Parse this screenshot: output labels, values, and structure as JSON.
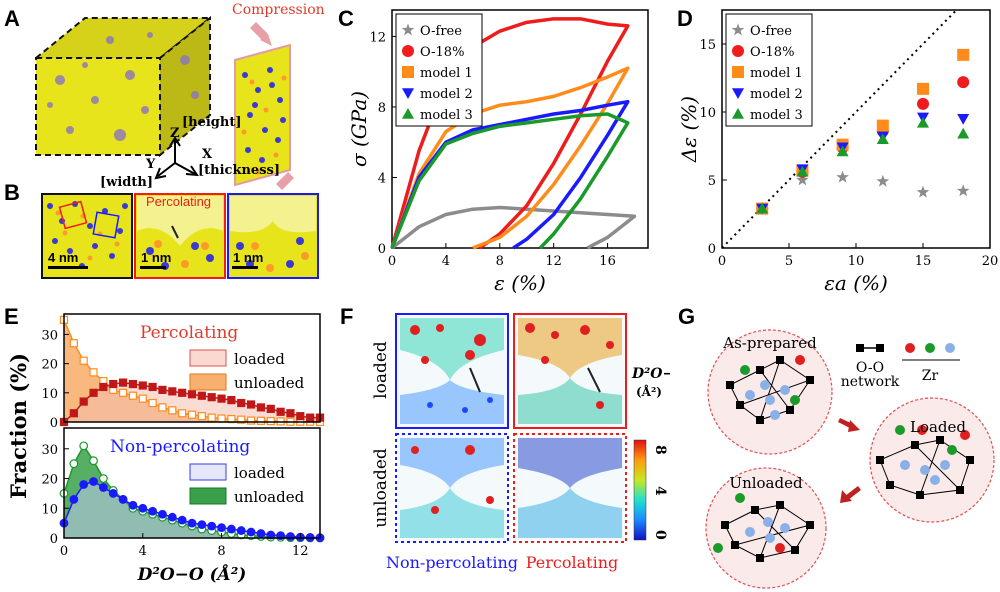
{
  "panel_labels": {
    "A": "A",
    "B": "B",
    "C": "C",
    "D": "D",
    "E": "E",
    "F": "F",
    "G": "G"
  },
  "panelA": {
    "compression": "Compression",
    "axis_z": "Z",
    "axis_y": "Y",
    "axis_x": "X",
    "height": "[height]",
    "width": "[width]",
    "thickness": "[thickness]"
  },
  "panelB": {
    "scale1": "4 nm",
    "scale2": "1 nm",
    "scale3": "1 nm",
    "percolating": "Percolating"
  },
  "colors": {
    "gray": "#8c8c8c",
    "red": "#ee1c1c",
    "orange": "#ff8c1a",
    "blue": "#1a1aff",
    "green": "#1a9a2a",
    "yellow": "#e8e41c",
    "purple": "#7a5cc8",
    "dkred": "#c01818",
    "dkgreen": "#2a8a3a"
  },
  "chart_data": [
    {
      "id": "C",
      "type": "line",
      "xlabel": "ε (%)",
      "ylabel": "σ (GPa)",
      "xlim": [
        0,
        19
      ],
      "ylim": [
        0,
        13.5
      ],
      "xticks": [
        "0",
        "4",
        "8",
        "12",
        "16"
      ],
      "yticks": [
        "0",
        "4",
        "8",
        "12"
      ],
      "legend": [
        "O-free",
        "O-18%",
        "model 1",
        "model 2",
        "model 3"
      ],
      "legend_position": "top-left",
      "series": [
        {
          "name": "O-free",
          "color": "gray",
          "loading": [
            [
              0,
              0
            ],
            [
              2,
              1.2
            ],
            [
              4,
              1.9
            ],
            [
              6,
              2.2
            ],
            [
              8,
              2.3
            ],
            [
              10,
              2.2
            ],
            [
              12,
              2.1
            ],
            [
              14,
              2.0
            ],
            [
              16,
              1.9
            ],
            [
              18,
              1.8
            ]
          ],
          "unloading": [
            [
              18,
              1.8
            ],
            [
              17,
              1.2
            ],
            [
              16,
              0.6
            ],
            [
              15,
              0.2
            ],
            [
              14.5,
              0
            ]
          ]
        },
        {
          "name": "O-18%",
          "color": "red",
          "loading": [
            [
              0,
              0
            ],
            [
              2,
              5.5
            ],
            [
              4,
              9.5
            ],
            [
              6,
              11.4
            ],
            [
              8,
              12.3
            ],
            [
              10,
              12.8
            ],
            [
              12,
              13.0
            ],
            [
              14,
              13.0
            ],
            [
              16,
              12.7
            ],
            [
              17.5,
              12.6
            ]
          ],
          "unloading": [
            [
              17.5,
              12.6
            ],
            [
              16,
              10.6
            ],
            [
              14,
              7.6
            ],
            [
              12,
              4.8
            ],
            [
              10,
              2.4
            ],
            [
              8,
              0.8
            ],
            [
              6.5,
              0
            ]
          ]
        },
        {
          "name": "model 1",
          "color": "orange",
          "loading": [
            [
              0,
              0
            ],
            [
              2,
              4.2
            ],
            [
              4,
              6.6
            ],
            [
              6,
              7.6
            ],
            [
              8,
              8.1
            ],
            [
              10,
              8.3
            ],
            [
              12,
              8.6
            ],
            [
              14,
              9.1
            ],
            [
              16,
              9.7
            ],
            [
              17.5,
              10.2
            ]
          ],
          "unloading": [
            [
              17.5,
              10.2
            ],
            [
              16,
              8.2
            ],
            [
              14,
              5.8
            ],
            [
              12,
              3.6
            ],
            [
              10,
              1.8
            ],
            [
              8,
              0.6
            ],
            [
              6,
              0
            ]
          ]
        },
        {
          "name": "model 2",
          "color": "blue",
          "loading": [
            [
              0,
              0
            ],
            [
              2,
              4.0
            ],
            [
              4,
              6.0
            ],
            [
              6,
              6.7
            ],
            [
              8,
              7.0
            ],
            [
              10,
              7.3
            ],
            [
              12,
              7.6
            ],
            [
              14,
              7.8
            ],
            [
              16,
              8.1
            ],
            [
              17.5,
              8.3
            ]
          ],
          "unloading": [
            [
              17.5,
              8.3
            ],
            [
              16,
              6.4
            ],
            [
              14,
              4.0
            ],
            [
              12,
              1.9
            ],
            [
              10,
              0.5
            ],
            [
              9,
              0
            ]
          ]
        },
        {
          "name": "model 3",
          "color": "green",
          "loading": [
            [
              0,
              0
            ],
            [
              2,
              3.8
            ],
            [
              4,
              5.9
            ],
            [
              6,
              6.5
            ],
            [
              8,
              6.9
            ],
            [
              10,
              7.1
            ],
            [
              12,
              7.3
            ],
            [
              14,
              7.5
            ],
            [
              16,
              7.6
            ],
            [
              17.5,
              7.1
            ]
          ],
          "unloading": [
            [
              17.5,
              7.1
            ],
            [
              16,
              5.2
            ],
            [
              14,
              2.8
            ],
            [
              12,
              0.8
            ],
            [
              11,
              0
            ]
          ]
        }
      ]
    },
    {
      "id": "D",
      "type": "scatter",
      "xlabel": "εa (%)",
      "ylabel": "Δε (%)",
      "xlim": [
        0,
        20
      ],
      "ylim": [
        0,
        17.5
      ],
      "xticks": [
        "0",
        "5",
        "10",
        "15",
        "20"
      ],
      "yticks": [
        "0",
        "5",
        "10",
        "15"
      ],
      "legend": [
        "O-free",
        "O-18%",
        "model 1",
        "model 2",
        "model 3"
      ],
      "legend_position": "top-left",
      "x": [
        3,
        6,
        9,
        12,
        15,
        18
      ],
      "series": [
        {
          "name": "O-free",
          "marker": "star",
          "color": "gray",
          "values": [
            2.8,
            5.0,
            5.2,
            4.9,
            4.1,
            4.2
          ]
        },
        {
          "name": "O-18%",
          "marker": "circle",
          "color": "red",
          "values": [
            2.9,
            5.6,
            7.4,
            8.6,
            10.6,
            12.2
          ]
        },
        {
          "name": "model 1",
          "marker": "square",
          "color": "orange",
          "values": [
            2.9,
            5.7,
            7.6,
            9.0,
            11.7,
            14.2
          ]
        },
        {
          "name": "model 2",
          "marker": "triangle-down",
          "color": "blue",
          "values": [
            2.9,
            5.8,
            7.4,
            8.2,
            9.6,
            9.5
          ]
        },
        {
          "name": "model 3",
          "marker": "triangle-up",
          "color": "green",
          "values": [
            2.9,
            5.6,
            7.1,
            8.0,
            9.2,
            8.4
          ]
        }
      ],
      "reference_line": "y = x (dotted)"
    },
    {
      "id": "E-top",
      "type": "area",
      "title": "Percolating",
      "ylabel": "Fraction (%)",
      "xlim": [
        0,
        13
      ],
      "ylim": [
        0,
        37
      ],
      "yticks": [
        "0",
        "10",
        "20",
        "30"
      ],
      "legend": [
        "loaded",
        "unloaded"
      ],
      "x": [
        0,
        0.5,
        1,
        1.5,
        2,
        2.5,
        3,
        3.5,
        4,
        4.5,
        5,
        5.5,
        6,
        6.5,
        7,
        7.5,
        8,
        8.5,
        9,
        9.5,
        10,
        10.5,
        11,
        11.5,
        12,
        12.5,
        13
      ],
      "series": [
        {
          "name": "loaded",
          "color": "dkred",
          "values": [
            0,
            3,
            7,
            10,
            12,
            13,
            13.5,
            13,
            12.5,
            12,
            11,
            10.5,
            10,
            9.5,
            9,
            8.5,
            8,
            7.5,
            6.5,
            6,
            5,
            4.5,
            3.5,
            3,
            2,
            1.5,
            1.5
          ]
        },
        {
          "name": "unloaded",
          "color": "orange",
          "values": [
            35,
            27,
            21,
            17,
            14,
            11,
            10,
            9,
            8,
            6.5,
            5,
            4,
            3,
            2.5,
            2,
            1.5,
            1.2,
            1,
            0.8,
            0.5,
            0.4,
            0.3,
            0.2,
            0.1,
            0.1,
            0.1,
            0
          ]
        }
      ]
    },
    {
      "id": "E-bottom",
      "type": "area",
      "title": "Non-percolating",
      "xlabel": "D²O−O (Å²)",
      "ylabel": "Fraction (%)",
      "xlim": [
        0,
        13
      ],
      "ylim": [
        0,
        37
      ],
      "xticks": [
        "0",
        "4",
        "8",
        "12"
      ],
      "yticks": [
        "0",
        "10",
        "20",
        "30"
      ],
      "legend": [
        "loaded",
        "unloaded"
      ],
      "x": [
        0,
        0.5,
        1,
        1.5,
        2,
        2.5,
        3,
        3.5,
        4,
        4.5,
        5,
        5.5,
        6,
        6.5,
        7,
        7.5,
        8,
        8.5,
        9,
        9.5,
        10,
        10.5,
        11,
        11.5,
        12,
        12.5,
        13
      ],
      "series": [
        {
          "name": "loaded",
          "color": "blue",
          "values": [
            5,
            13,
            18,
            19,
            17,
            15,
            13,
            11,
            10,
            9,
            8,
            7,
            6,
            5,
            4.5,
            4,
            3.5,
            3,
            2.5,
            2,
            1.5,
            1,
            0.8,
            0.5,
            0.3,
            0.2,
            0.1
          ]
        },
        {
          "name": "unloaded",
          "color": "green",
          "values": [
            15,
            25,
            31,
            26,
            20,
            16,
            13,
            10,
            9,
            8,
            7,
            6,
            5,
            4,
            3,
            2.5,
            2,
            1.5,
            1,
            0.8,
            0.5,
            0.3,
            0.2,
            0.1,
            0.1,
            0,
            0
          ]
        }
      ]
    }
  ],
  "panelF": {
    "loaded": "loaded",
    "unloaded": "unloaded",
    "non_percolating": "Non-percolating",
    "percolating": "Percolating",
    "cbar_title": "D²O−O",
    "cbar_unit": "(Å²)",
    "cbar_ticks": [
      "8",
      "4",
      "0"
    ]
  },
  "panelG": {
    "as_prepared": "As-prepared",
    "loaded": "Loaded",
    "unloaded": "Unloaded",
    "network": "O-O\nnetwork",
    "network1": "O-O",
    "network2": "network",
    "zr": "Zr"
  }
}
